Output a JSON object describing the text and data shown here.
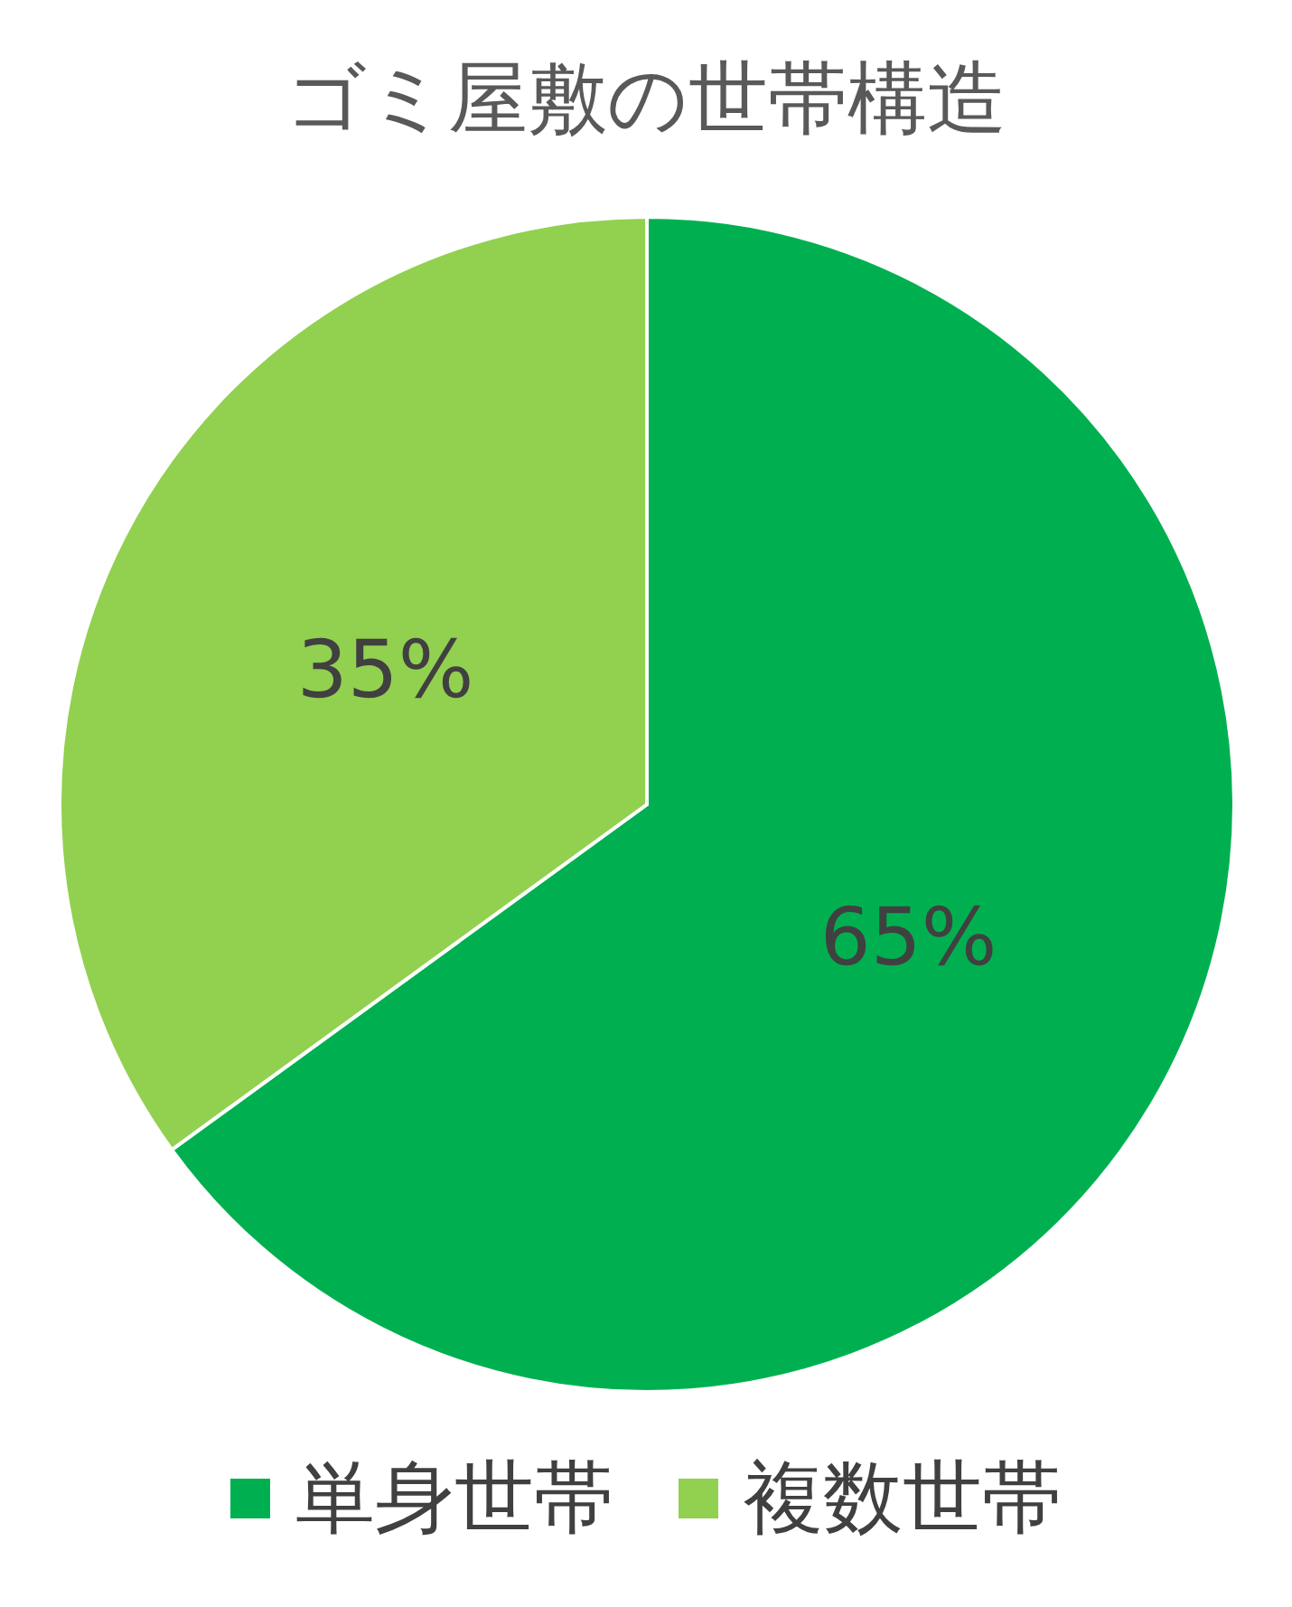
{
  "chart_data": {
    "type": "pie",
    "title": "ゴミ屋敷の世帯構造",
    "categories": [
      "単身世帯",
      "複数世帯"
    ],
    "values": [
      65,
      35
    ],
    "colors": [
      "#00b050",
      "#92d050"
    ],
    "value_labels": [
      "65%",
      "35%"
    ],
    "legend": "bottom"
  }
}
